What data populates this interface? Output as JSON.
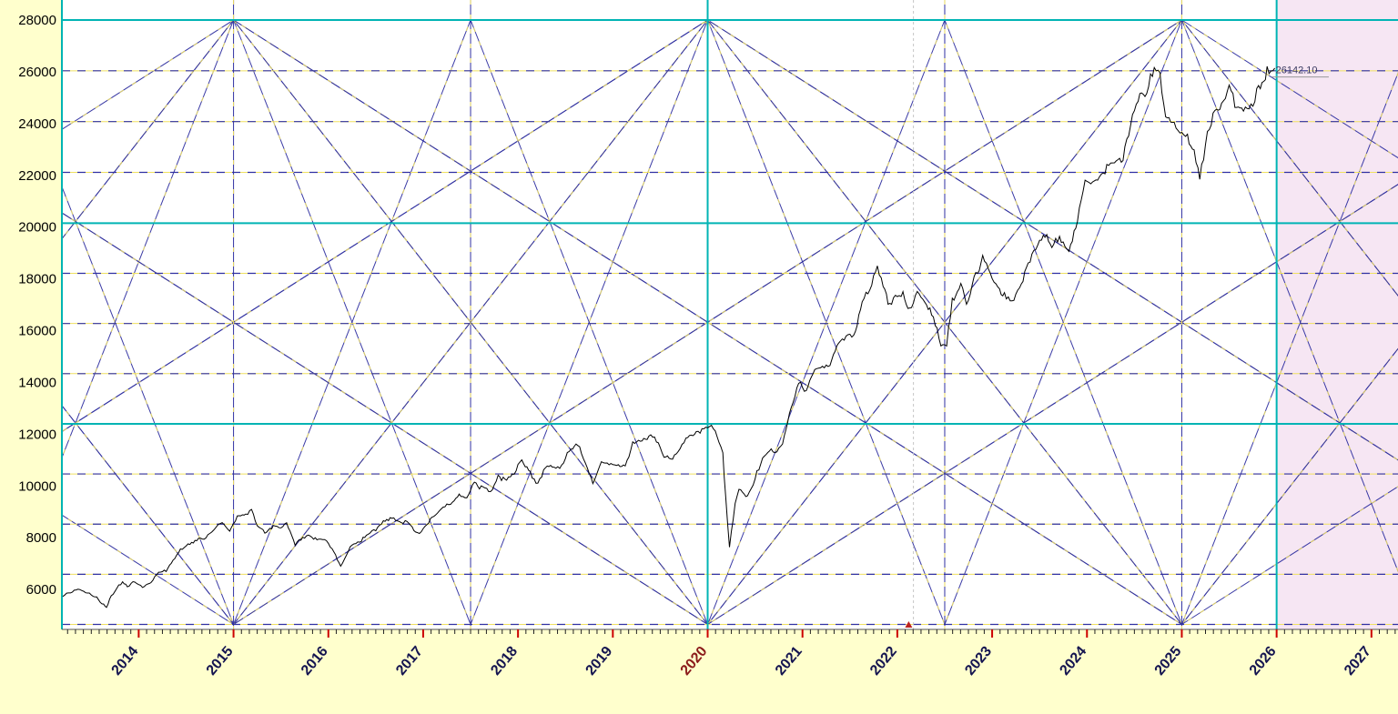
{
  "window": {
    "title": "Gann Square Price Chart"
  },
  "colors": {
    "margin_bg": "#ffffcd",
    "plot_bg": "#ffffff",
    "future_bg": "#f6e6f3",
    "teal": "#00b4b4",
    "navy": "#3030a0",
    "gold": "#efe060",
    "price": "#000000",
    "cursor": "#c6c6c6",
    "marker_red": "#bb2222",
    "axis_text": "#000000",
    "year_text": "#141450",
    "year_highlight_text": "#8b1a1a",
    "tick_red": "#cc0000",
    "tick_black": "#222222",
    "last_label_text": "#3a3a60"
  },
  "chart_data": {
    "type": "line",
    "title": "",
    "xlabel": "",
    "ylabel": "",
    "x_range": [
      2013.19,
      2027.28
    ],
    "y_range": [
      4457,
      28773
    ],
    "grid": "gann-lattice",
    "legend": "none",
    "y_ticks": [
      28000,
      26000,
      24000,
      22000,
      20000,
      18000,
      16000,
      14000,
      12000,
      10000,
      8000,
      6000
    ],
    "y_tick_labels": [
      "28000",
      "26000",
      "24000",
      "22000",
      "20000",
      "18000",
      "16000",
      "14000",
      "12000",
      "10000",
      "8000",
      "6000"
    ],
    "x_tick_years": [
      2014,
      2015,
      2016,
      2017,
      2018,
      2019,
      2020,
      2021,
      2022,
      2023,
      2024,
      2025,
      2026,
      2027
    ],
    "x_tick_labels": [
      "2014",
      "2015",
      "2016",
      "2017",
      "2018",
      "2019",
      "2020",
      "2021",
      "2022",
      "2023",
      "2024",
      "2025",
      "2026",
      "2027"
    ],
    "highlight_year": "2020",
    "teal_h_lines": [
      28000,
      20150,
      12400
    ],
    "teal_v_lines": [
      2013.19,
      2020,
      2026
    ],
    "navy_v_lines": [
      2015,
      2017.5,
      2022.5,
      2025
    ],
    "dashed_h_lines": [
      26038,
      24075,
      22113,
      18213,
      16275,
      14338,
      10463,
      8525,
      6588,
      4650
    ],
    "gann": {
      "anchors": [
        2010,
        2015,
        2020,
        2025,
        2030
      ],
      "band": [
        4650,
        28000
      ],
      "spans": [
        2.5,
        5,
        10
      ]
    },
    "future_start": 2026.0,
    "cursor_x": 2022.17,
    "event_marker": {
      "x": 2022.12,
      "y": 4700
    },
    "last_price_label": "26142.10",
    "last_price": 26142.1,
    "series": [
      {
        "name": "price",
        "points": [
          [
            2013.2,
            5750
          ],
          [
            2013.3,
            5930
          ],
          [
            2013.38,
            5990
          ],
          [
            2013.46,
            5840
          ],
          [
            2013.54,
            5730
          ],
          [
            2013.63,
            5420
          ],
          [
            2013.66,
            5300
          ],
          [
            2013.71,
            5740
          ],
          [
            2013.79,
            6140
          ],
          [
            2013.83,
            6300
          ],
          [
            2013.88,
            6120
          ],
          [
            2013.96,
            6300
          ],
          [
            2014.04,
            6090
          ],
          [
            2014.13,
            6280
          ],
          [
            2014.21,
            6700
          ],
          [
            2014.29,
            6700
          ],
          [
            2014.38,
            7230
          ],
          [
            2014.46,
            7610
          ],
          [
            2014.54,
            7720
          ],
          [
            2014.63,
            7950
          ],
          [
            2014.71,
            7965
          ],
          [
            2014.79,
            8320
          ],
          [
            2014.88,
            8590
          ],
          [
            2014.96,
            8280
          ],
          [
            2015.04,
            8810
          ],
          [
            2015.13,
            8900
          ],
          [
            2015.19,
            9050
          ],
          [
            2015.25,
            8490
          ],
          [
            2015.33,
            8180
          ],
          [
            2015.42,
            8430
          ],
          [
            2015.5,
            8370
          ],
          [
            2015.56,
            8530
          ],
          [
            2015.65,
            7720
          ],
          [
            2015.71,
            7950
          ],
          [
            2015.79,
            8070
          ],
          [
            2015.88,
            7930
          ],
          [
            2015.96,
            7950
          ],
          [
            2016.04,
            7560
          ],
          [
            2016.13,
            6900
          ],
          [
            2016.21,
            7450
          ],
          [
            2016.25,
            7740
          ],
          [
            2016.33,
            7850
          ],
          [
            2016.42,
            8160
          ],
          [
            2016.5,
            8290
          ],
          [
            2016.58,
            8640
          ],
          [
            2016.67,
            8790
          ],
          [
            2016.75,
            8610
          ],
          [
            2016.83,
            8630
          ],
          [
            2016.92,
            8220
          ],
          [
            2016.96,
            8190
          ],
          [
            2017.04,
            8560
          ],
          [
            2017.13,
            8880
          ],
          [
            2017.21,
            9170
          ],
          [
            2017.29,
            9300
          ],
          [
            2017.38,
            9620
          ],
          [
            2017.46,
            9520
          ],
          [
            2017.54,
            10080
          ],
          [
            2017.63,
            9920
          ],
          [
            2017.71,
            9790
          ],
          [
            2017.79,
            10340
          ],
          [
            2017.88,
            10230
          ],
          [
            2017.96,
            10530
          ],
          [
            2018.04,
            11030
          ],
          [
            2018.13,
            10490
          ],
          [
            2018.21,
            10110
          ],
          [
            2018.29,
            10740
          ],
          [
            2018.38,
            10740
          ],
          [
            2018.46,
            10710
          ],
          [
            2018.54,
            11360
          ],
          [
            2018.63,
            11680
          ],
          [
            2018.71,
            10930
          ],
          [
            2018.79,
            10090
          ],
          [
            2018.88,
            10880
          ],
          [
            2018.96,
            10860
          ],
          [
            2019.04,
            10830
          ],
          [
            2019.13,
            10790
          ],
          [
            2019.21,
            11620
          ],
          [
            2019.29,
            11750
          ],
          [
            2019.38,
            11920
          ],
          [
            2019.46,
            11790
          ],
          [
            2019.54,
            11120
          ],
          [
            2019.63,
            11020
          ],
          [
            2019.71,
            11470
          ],
          [
            2019.79,
            11880
          ],
          [
            2019.88,
            12060
          ],
          [
            2019.96,
            12170
          ],
          [
            2020.04,
            12350
          ],
          [
            2020.1,
            11960
          ],
          [
            2020.16,
            11200
          ],
          [
            2020.19,
            9600
          ],
          [
            2020.23,
            7620
          ],
          [
            2020.29,
            9300
          ],
          [
            2020.33,
            9860
          ],
          [
            2020.42,
            9580
          ],
          [
            2020.5,
            10300
          ],
          [
            2020.58,
            11070
          ],
          [
            2020.67,
            11390
          ],
          [
            2020.71,
            11250
          ],
          [
            2020.79,
            11640
          ],
          [
            2020.88,
            12970
          ],
          [
            2020.96,
            13980
          ],
          [
            2021.04,
            13630
          ],
          [
            2021.13,
            14530
          ],
          [
            2021.21,
            14690
          ],
          [
            2021.29,
            14630
          ],
          [
            2021.38,
            15580
          ],
          [
            2021.46,
            15720
          ],
          [
            2021.54,
            15760
          ],
          [
            2021.63,
            17130
          ],
          [
            2021.71,
            17620
          ],
          [
            2021.79,
            18480
          ],
          [
            2021.85,
            17670
          ],
          [
            2021.92,
            16980
          ],
          [
            2021.98,
            17350
          ],
          [
            2022.06,
            17340
          ],
          [
            2022.13,
            16790
          ],
          [
            2022.21,
            17460
          ],
          [
            2022.29,
            17100
          ],
          [
            2022.38,
            16590
          ],
          [
            2022.46,
            15500
          ],
          [
            2022.52,
            15400
          ],
          [
            2022.58,
            17160
          ],
          [
            2022.67,
            17760
          ],
          [
            2022.73,
            16950
          ],
          [
            2022.81,
            18010
          ],
          [
            2022.9,
            18760
          ],
          [
            2022.98,
            18110
          ],
          [
            2023.06,
            17660
          ],
          [
            2023.13,
            17300
          ],
          [
            2023.23,
            17100
          ],
          [
            2023.29,
            17700
          ],
          [
            2023.38,
            18530
          ],
          [
            2023.46,
            19190
          ],
          [
            2023.54,
            19750
          ],
          [
            2023.63,
            19250
          ],
          [
            2023.71,
            19640
          ],
          [
            2023.81,
            19080
          ],
          [
            2023.9,
            20270
          ],
          [
            2023.98,
            21730
          ],
          [
            2024.06,
            21720
          ],
          [
            2024.13,
            21980
          ],
          [
            2024.21,
            22330
          ],
          [
            2024.29,
            22600
          ],
          [
            2024.38,
            22530
          ],
          [
            2024.46,
            24010
          ],
          [
            2024.54,
            24950
          ],
          [
            2024.63,
            25240
          ],
          [
            2024.71,
            26250
          ],
          [
            2024.77,
            25810
          ],
          [
            2024.83,
            24200
          ],
          [
            2024.9,
            24130
          ],
          [
            2024.98,
            23650
          ],
          [
            2025.06,
            23510
          ],
          [
            2025.13,
            22900
          ],
          [
            2025.19,
            21900
          ],
          [
            2025.27,
            23520
          ],
          [
            2025.33,
            24330
          ],
          [
            2025.42,
            24750
          ],
          [
            2025.5,
            25520
          ],
          [
            2025.56,
            24770
          ],
          [
            2025.65,
            24430
          ],
          [
            2025.73,
            24610
          ],
          [
            2025.81,
            25300
          ],
          [
            2025.9,
            25950
          ],
          [
            2025.98,
            26142
          ]
        ]
      }
    ]
  }
}
